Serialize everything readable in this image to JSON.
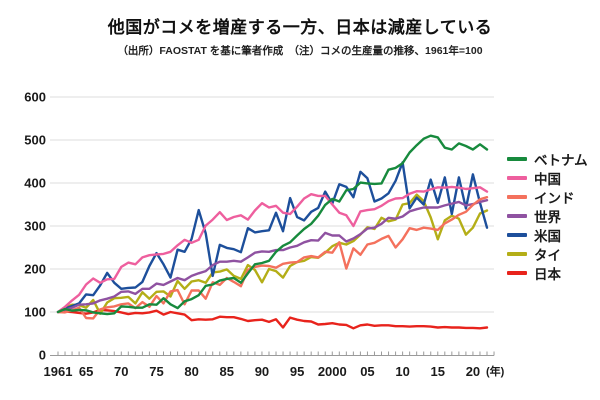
{
  "header": {
    "title": "他国がコメを増産する一方、日本は減産している",
    "subtitle": "（出所）FAOSTAT を基に筆者作成　（注）コメの生産量の推移、1961年=100"
  },
  "axes": {
    "y_ticks": [
      0,
      100,
      200,
      300,
      400,
      500,
      600
    ],
    "x_tick_labels": [
      {
        "label": "1961",
        "year": 1961
      },
      {
        "label": "65",
        "year": 1965
      },
      {
        "label": "70",
        "year": 1970
      },
      {
        "label": "75",
        "year": 1975
      },
      {
        "label": "80",
        "year": 1980
      },
      {
        "label": "85",
        "year": 1985
      },
      {
        "label": "90",
        "year": 1990
      },
      {
        "label": "95",
        "year": 1995
      },
      {
        "label": "2000",
        "year": 2000
      },
      {
        "label": "05",
        "year": 2005
      },
      {
        "label": "10",
        "year": 2010
      },
      {
        "label": "15",
        "year": 2015
      },
      {
        "label": "20",
        "year": 2020
      }
    ],
    "x_unit_label": "(年)"
  },
  "legend": [
    {
      "id": "vietnam",
      "label": "ベトナム",
      "color": "#178a3d"
    },
    {
      "id": "china",
      "label": "中国",
      "color": "#ee5f9e"
    },
    {
      "id": "india",
      "label": "インド",
      "color": "#f4715d"
    },
    {
      "id": "world",
      "label": "世界",
      "color": "#8f52a1"
    },
    {
      "id": "us",
      "label": "米国",
      "color": "#1d4f9b"
    },
    {
      "id": "thailand",
      "label": "タイ",
      "color": "#b4ae17"
    },
    {
      "id": "japan",
      "label": "日本",
      "color": "#e8231c"
    }
  ],
  "chart_data": {
    "type": "line",
    "title": "他国がコメを増産する一方、日本は減産している",
    "note": "コメの生産量の推移、1961年=100 (出所: FAOSTAT)",
    "xlabel": "年",
    "ylabel": "",
    "ylim": [
      0,
      600
    ],
    "grid": true,
    "legend_position": "right",
    "x": [
      1961,
      1962,
      1963,
      1964,
      1965,
      1966,
      1967,
      1968,
      1969,
      1970,
      1971,
      1972,
      1973,
      1974,
      1975,
      1976,
      1977,
      1978,
      1979,
      1980,
      1981,
      1982,
      1983,
      1984,
      1985,
      1986,
      1987,
      1988,
      1989,
      1990,
      1991,
      1992,
      1993,
      1994,
      1995,
      1996,
      1997,
      1998,
      1999,
      2000,
      2001,
      2002,
      2003,
      2004,
      2005,
      2006,
      2007,
      2008,
      2009,
      2010,
      2011,
      2012,
      2013,
      2014,
      2015,
      2016,
      2017,
      2018,
      2019,
      2020,
      2021,
      2022
    ],
    "series": [
      {
        "id": "vietnam",
        "name": "ベトナム",
        "color": "#178a3d",
        "values": [
          100,
          107,
          103,
          105,
          104,
          99,
          97,
          95,
          97,
          113,
          112,
          110,
          110,
          118,
          117,
          132,
          118,
          109,
          125,
          130,
          139,
          161,
          164,
          173,
          177,
          179,
          168,
          190,
          211,
          214,
          219,
          240,
          254,
          262,
          278,
          293,
          305,
          324,
          349,
          363,
          357,
          383,
          386,
          401,
          399,
          398,
          399,
          431,
          435,
          446,
          471,
          488,
          503,
          510,
          506,
          482,
          478,
          492,
          486,
          478,
          490,
          478
        ]
      },
      {
        "id": "china",
        "name": "中国",
        "color": "#ee5f9e",
        "values": [
          100,
          112,
          127,
          140,
          164,
          178,
          168,
          176,
          177,
          205,
          215,
          211,
          227,
          232,
          234,
          235,
          240,
          255,
          268,
          261,
          268,
          301,
          315,
          332,
          314,
          321,
          325,
          315,
          336,
          353,
          343,
          347,
          331,
          328,
          345,
          364,
          374,
          370,
          370,
          350,
          331,
          325,
          300,
          334,
          337,
          339,
          347,
          358,
          364,
          365,
          375,
          381,
          380,
          385,
          390,
          389,
          391,
          389,
          386,
          388,
          390,
          380
        ]
      },
      {
        "id": "india",
        "name": "インド",
        "color": "#f4715d",
        "values": [
          100,
          99,
          104,
          110,
          86,
          85,
          106,
          111,
          113,
          118,
          120,
          109,
          123,
          112,
          137,
          120,
          148,
          151,
          118,
          150,
          150,
          131,
          169,
          163,
          179,
          170,
          160,
          198,
          205,
          208,
          207,
          203,
          212,
          215,
          216,
          227,
          230,
          227,
          240,
          238,
          262,
          201,
          248,
          233,
          257,
          261,
          270,
          277,
          250,
          269,
          295,
          291,
          296,
          294,
          291,
          306,
          315,
          326,
          333,
          349,
          362,
          367
        ]
      },
      {
        "id": "world",
        "name": "世界",
        "color": "#8f52a1",
        "values": [
          100,
          105,
          110,
          117,
          118,
          120,
          127,
          131,
          136,
          147,
          148,
          142,
          154,
          154,
          166,
          163,
          171,
          179,
          174,
          184,
          190,
          195,
          209,
          217,
          217,
          219,
          217,
          227,
          238,
          241,
          240,
          244,
          244,
          250,
          254,
          262,
          267,
          266,
          284,
          278,
          278,
          264,
          271,
          281,
          294,
          296,
          305,
          319,
          317,
          322,
          334,
          339,
          343,
          343,
          343,
          348,
          352,
          356,
          348,
          351,
          356,
          360
        ]
      },
      {
        "id": "us",
        "name": "米国",
        "color": "#1d4f9b",
        "values": [
          100,
          108,
          114,
          120,
          141,
          139,
          162,
          191,
          168,
          154,
          156,
          157,
          170,
          207,
          237,
          211,
          180,
          245,
          240,
          270,
          337,
          283,
          184,
          256,
          249,
          246,
          239,
          295,
          285,
          288,
          290,
          331,
          288,
          365,
          321,
          313,
          333,
          342,
          380,
          352,
          397,
          391,
          367,
          426,
          411,
          357,
          364,
          376,
          405,
          448,
          341,
          366,
          350,
          408,
          354,
          413,
          328,
          413,
          341,
          420,
          354,
          296
        ]
      },
      {
        "id": "thailand",
        "name": "タイ",
        "color": "#b4ae17",
        "values": [
          100,
          110,
          117,
          116,
          110,
          128,
          96,
          122,
          132,
          133,
          135,
          120,
          146,
          131,
          147,
          148,
          136,
          172,
          154,
          171,
          174,
          168,
          192,
          194,
          199,
          184,
          177,
          209,
          198,
          169,
          200,
          195,
          180,
          207,
          216,
          219,
          228,
          226,
          238,
          253,
          261,
          257,
          265,
          280,
          297,
          293,
          319,
          311,
          315,
          350,
          353,
          373,
          358,
          320,
          269,
          313,
          324,
          317,
          280,
          296,
          329,
          336
        ]
      },
      {
        "id": "japan",
        "name": "日本",
        "color": "#e8231c",
        "values": [
          100,
          101,
          100,
          98,
          96,
          99,
          105,
          104,
          102,
          99,
          95,
          98,
          97,
          99,
          103,
          94,
          100,
          97,
          94,
          81,
          83,
          82,
          83,
          89,
          88,
          88,
          84,
          79,
          81,
          82,
          77,
          83,
          64,
          87,
          82,
          79,
          78,
          71,
          72,
          74,
          71,
          70,
          62,
          69,
          71,
          68,
          69,
          69,
          67,
          67,
          66,
          67,
          67,
          66,
          64,
          65,
          64,
          64,
          63,
          63,
          62,
          64
        ]
      }
    ]
  }
}
